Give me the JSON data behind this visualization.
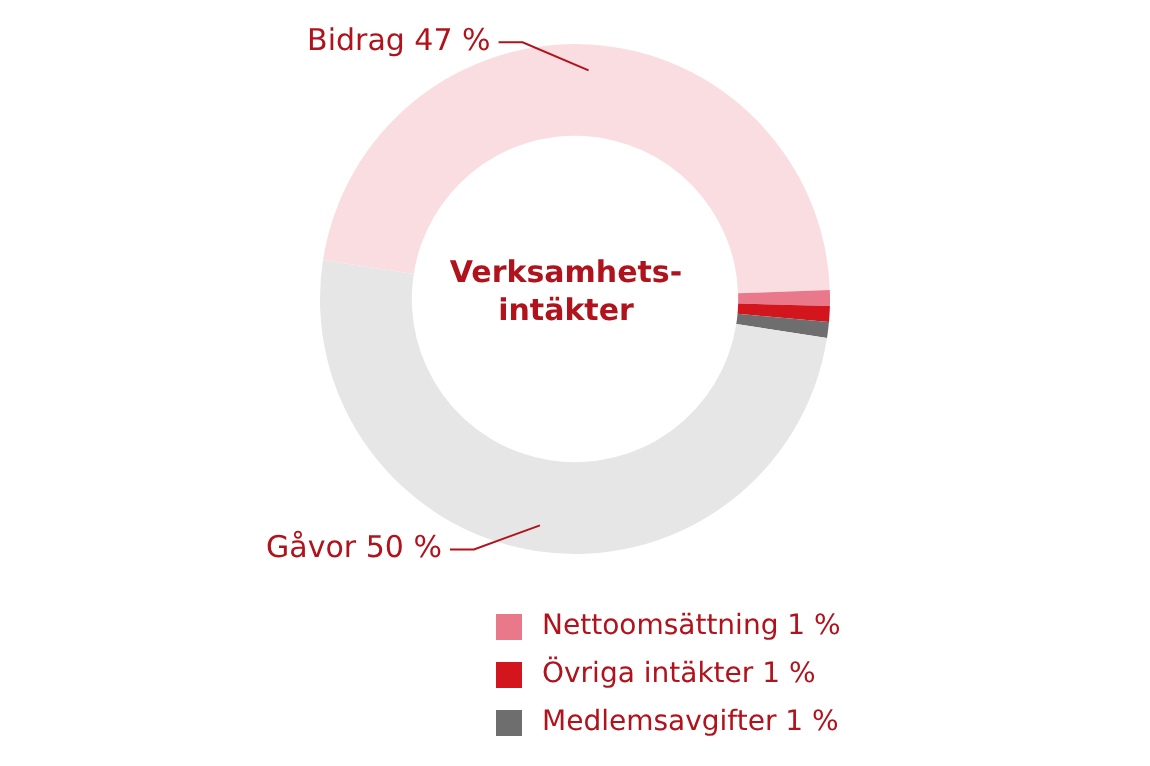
{
  "chart_data": {
    "type": "donut",
    "title": "Verksamhets-intäkter",
    "categories": [
      "Bidrag",
      "Nettoomsättning",
      "Övriga intäkter",
      "Medlemsavgifter",
      "Gåvor"
    ],
    "values": [
      47,
      1,
      1,
      1,
      50
    ],
    "value_labels": [
      "47 %",
      "1 %",
      "1 %",
      "1 %",
      "50 %"
    ],
    "colors": [
      "#fadde1",
      "#e9788a",
      "#d3151d",
      "#6e6e6e",
      "#e6e6e6"
    ],
    "legend": "bottom right"
  }
}
